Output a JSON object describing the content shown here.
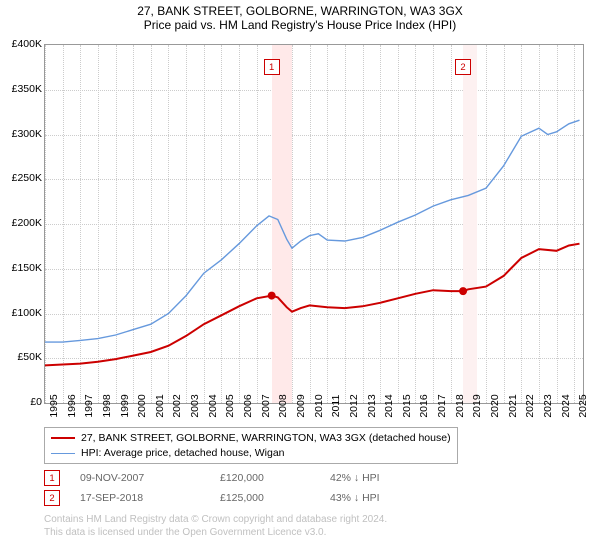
{
  "title": "27, BANK STREET, GOLBORNE, WARRINGTON, WA3 3GX",
  "subtitle": "Price paid vs. HM Land Registry's House Price Index (HPI)",
  "chart": {
    "type": "line",
    "background_color": "#ffffff",
    "grid_color": "#cccccc",
    "border_color": "#999999",
    "xlim": [
      1995,
      2025.5
    ],
    "ylim": [
      0,
      400000
    ],
    "yticks": [
      0,
      50000,
      100000,
      150000,
      200000,
      250000,
      300000,
      350000,
      400000
    ],
    "ytick_labels": [
      "£0",
      "£50K",
      "£100K",
      "£150K",
      "£200K",
      "£250K",
      "£300K",
      "£350K",
      "£400K"
    ],
    "xticks": [
      1995,
      1996,
      1997,
      1998,
      1999,
      2000,
      2001,
      2002,
      2003,
      2004,
      2005,
      2006,
      2007,
      2008,
      2009,
      2010,
      2011,
      2012,
      2013,
      2014,
      2015,
      2016,
      2017,
      2018,
      2019,
      2020,
      2021,
      2022,
      2023,
      2024,
      2025
    ],
    "series": [
      {
        "name": "price_paid",
        "color": "#cc0000",
        "line_width": 2,
        "legend": "27, BANK STREET, GOLBORNE, WARRINGTON, WA3 3GX (detached house)",
        "points": [
          [
            1995,
            42000
          ],
          [
            1996,
            43000
          ],
          [
            1997,
            44000
          ],
          [
            1998,
            46000
          ],
          [
            1999,
            49000
          ],
          [
            2000,
            53000
          ],
          [
            2001,
            57000
          ],
          [
            2002,
            64000
          ],
          [
            2003,
            75000
          ],
          [
            2004,
            88000
          ],
          [
            2005,
            98000
          ],
          [
            2006,
            108000
          ],
          [
            2007,
            117000
          ],
          [
            2007.85,
            120000
          ],
          [
            2008.2,
            118000
          ],
          [
            2008.7,
            107000
          ],
          [
            2009,
            102000
          ],
          [
            2009.5,
            106000
          ],
          [
            2010,
            109000
          ],
          [
            2011,
            107000
          ],
          [
            2012,
            106000
          ],
          [
            2013,
            108000
          ],
          [
            2014,
            112000
          ],
          [
            2015,
            117000
          ],
          [
            2016,
            122000
          ],
          [
            2017,
            126000
          ],
          [
            2018,
            125000
          ],
          [
            2018.7,
            125000
          ],
          [
            2019,
            127000
          ],
          [
            2020,
            130000
          ],
          [
            2021,
            142000
          ],
          [
            2022,
            162000
          ],
          [
            2023,
            172000
          ],
          [
            2024,
            170000
          ],
          [
            2024.7,
            176000
          ],
          [
            2025.3,
            178000
          ]
        ]
      },
      {
        "name": "hpi",
        "color": "#6699dd",
        "line_width": 1.4,
        "legend": "HPI: Average price, detached house, Wigan",
        "points": [
          [
            1995,
            68000
          ],
          [
            1996,
            68000
          ],
          [
            1997,
            70000
          ],
          [
            1998,
            72000
          ],
          [
            1999,
            76000
          ],
          [
            2000,
            82000
          ],
          [
            2001,
            88000
          ],
          [
            2002,
            100000
          ],
          [
            2003,
            120000
          ],
          [
            2004,
            145000
          ],
          [
            2005,
            160000
          ],
          [
            2006,
            178000
          ],
          [
            2007,
            198000
          ],
          [
            2007.7,
            209000
          ],
          [
            2008.2,
            205000
          ],
          [
            2008.7,
            183000
          ],
          [
            2009,
            173000
          ],
          [
            2009.5,
            181000
          ],
          [
            2010,
            187000
          ],
          [
            2010.5,
            189000
          ],
          [
            2011,
            182000
          ],
          [
            2012,
            181000
          ],
          [
            2013,
            185000
          ],
          [
            2014,
            193000
          ],
          [
            2015,
            202000
          ],
          [
            2016,
            210000
          ],
          [
            2017,
            220000
          ],
          [
            2018,
            227000
          ],
          [
            2019,
            232000
          ],
          [
            2020,
            240000
          ],
          [
            2021,
            265000
          ],
          [
            2022,
            298000
          ],
          [
            2023,
            307000
          ],
          [
            2023.5,
            300000
          ],
          [
            2024,
            303000
          ],
          [
            2024.7,
            312000
          ],
          [
            2025.3,
            316000
          ]
        ]
      }
    ],
    "bands": [
      {
        "from": 2007.85,
        "to": 2009.0,
        "color": "#ffe9e9"
      },
      {
        "from": 2018.7,
        "to": 2019.5,
        "color": "#fdf1f1"
      }
    ],
    "markers": [
      {
        "id": "1",
        "x": 2007.85,
        "y": 120000,
        "color": "#cc0000",
        "label_y_top": 14
      },
      {
        "id": "2",
        "x": 2018.7,
        "y": 125000,
        "color": "#cc0000",
        "label_y_top": 14
      }
    ]
  },
  "transactions": [
    {
      "id": "1",
      "date": "09-NOV-2007",
      "price": "£120,000",
      "delta": "42% ↓ HPI",
      "color": "#cc0000"
    },
    {
      "id": "2",
      "date": "17-SEP-2018",
      "price": "£125,000",
      "delta": "43% ↓ HPI",
      "color": "#cc0000"
    }
  ],
  "footer": {
    "line1": "Contains HM Land Registry data © Crown copyright and database right 2024.",
    "line2": "This data is licensed under the Open Government Licence v3.0."
  },
  "typography": {
    "title_fontsize": 12,
    "tick_fontsize": 10.5,
    "legend_fontsize": 10.5,
    "footer_fontsize": 10
  }
}
